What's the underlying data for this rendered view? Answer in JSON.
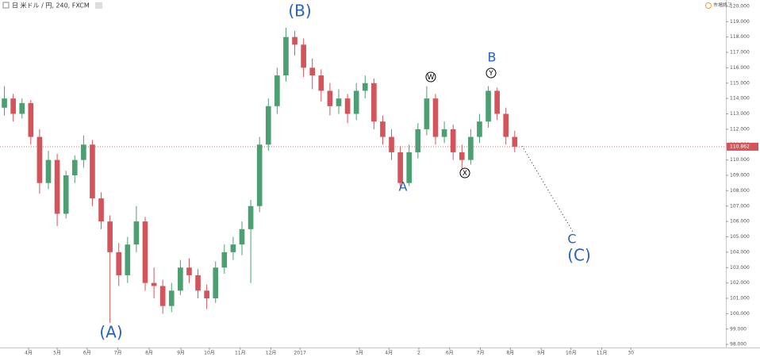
{
  "header": {
    "symbol": "日 米ドル / 円, 240, FXCM",
    "status": "市場終了"
  },
  "chart_data": {
    "type": "candlestick",
    "up_color": "#4c9f70",
    "down_color": "#d3555b",
    "xlim": [
      -0.5,
      82
    ],
    "xticks": [
      {
        "value": 2.75,
        "label": "4月"
      },
      {
        "value": 6.0,
        "label": "5月"
      },
      {
        "value": 9.4,
        "label": "6月"
      },
      {
        "value": 12.9,
        "label": "7月"
      },
      {
        "value": 16.45,
        "label": "8月"
      },
      {
        "value": 20.06,
        "label": "9月"
      },
      {
        "value": 23.3,
        "label": "10月"
      },
      {
        "value": 26.8,
        "label": "11月"
      },
      {
        "value": 30.3,
        "label": "12月"
      },
      {
        "value": 33.6,
        "label": "2017"
      },
      {
        "value": 40.35,
        "label": "3月"
      },
      {
        "value": 43.7,
        "label": "4月"
      },
      {
        "value": 47.1,
        "label": "2"
      },
      {
        "value": 50.6,
        "label": "6月"
      },
      {
        "value": 54.1,
        "label": "7月"
      },
      {
        "value": 57.5,
        "label": "8月"
      },
      {
        "value": 61.0,
        "label": "9月"
      },
      {
        "value": 64.4,
        "label": "10月"
      },
      {
        "value": 67.9,
        "label": "11月"
      },
      {
        "value": 71.2,
        "label": "30"
      }
    ],
    "ylim": [
      97.8,
      120.2
    ],
    "yticks": [
      {
        "value": 98,
        "label": "98.000"
      },
      {
        "value": 99,
        "label": "99.000"
      },
      {
        "value": 100,
        "label": "100.000"
      },
      {
        "value": 101,
        "label": "101.000"
      },
      {
        "value": 102,
        "label": "102.000"
      },
      {
        "value": 103,
        "label": "103.000"
      },
      {
        "value": 104,
        "label": "104.000"
      },
      {
        "value": 105,
        "label": "105.000"
      },
      {
        "value": 106,
        "label": "106.000"
      },
      {
        "value": 107,
        "label": "107.000"
      },
      {
        "value": 108,
        "label": "108.000"
      },
      {
        "value": 109,
        "label": "109.000"
      },
      {
        "value": 110,
        "label": "110.000"
      },
      {
        "value": 111,
        "label": "111.000"
      },
      {
        "value": 112,
        "label": "112.000"
      },
      {
        "value": 113,
        "label": "113.000"
      },
      {
        "value": 114,
        "label": "114.000"
      },
      {
        "value": 115,
        "label": "115.000"
      },
      {
        "value": 116,
        "label": "116.000"
      },
      {
        "value": 117,
        "label": "117.000"
      },
      {
        "value": 118,
        "label": "118.000"
      },
      {
        "value": 119,
        "label": "119.000"
      },
      {
        "value": 120,
        "label": "120.000"
      }
    ],
    "last_price": {
      "value": 110.862,
      "label": "110.862"
    },
    "series": [
      {
        "open": [
          113.4,
          114.0,
          113.0,
          113.7,
          111.5,
          108.5,
          110.0,
          106.5,
          109.0,
          110.0,
          111.0,
          107.5,
          106.0,
          104.0,
          102.5,
          104.5,
          106.0,
          102.0,
          101.8,
          100.5,
          101.5,
          103.0,
          102.5,
          101.5,
          101.0,
          103.0,
          104.0,
          104.5,
          105.5,
          107.0,
          111.0,
          113.5,
          115.5,
          118.0,
          117.5,
          116.0,
          115.5,
          114.5,
          113.5,
          114.0,
          113.0,
          114.5,
          115.0,
          112.5,
          111.5,
          110.5,
          108.5,
          110.5,
          112.0,
          114.0,
          111.5,
          112.0,
          110.5,
          110.0,
          111.5,
          112.5,
          114.5,
          113.0,
          111.5
        ],
        "high": [
          114.8,
          114.3,
          114.0,
          113.9,
          112.0,
          110.6,
          110.4,
          109.3,
          110.3,
          111.6,
          111.3,
          107.9,
          106.4,
          104.6,
          105.0,
          107.0,
          106.3,
          103.0,
          102.2,
          102.0,
          103.5,
          103.6,
          102.9,
          101.9,
          103.4,
          104.5,
          105.0,
          106.0,
          107.4,
          111.5,
          114.0,
          116.0,
          118.6,
          118.4,
          117.9,
          116.6,
          115.9,
          115.0,
          114.6,
          114.3,
          115.0,
          115.5,
          115.3,
          112.9,
          112.0,
          110.9,
          111.0,
          112.4,
          114.8,
          114.3,
          112.5,
          112.3,
          111.0,
          112.0,
          113.0,
          114.8,
          114.7,
          113.4,
          111.9
        ],
        "low": [
          112.9,
          112.5,
          112.7,
          111.0,
          107.8,
          108.1,
          105.7,
          106.2,
          108.5,
          109.5,
          107.0,
          105.5,
          99.4,
          101.8,
          102.0,
          104.0,
          101.5,
          101.0,
          100.0,
          100.1,
          101.2,
          102.0,
          101.0,
          100.3,
          100.7,
          102.6,
          103.5,
          103.8,
          102.0,
          106.6,
          110.6,
          113.0,
          115.1,
          116.8,
          115.4,
          114.6,
          113.8,
          112.9,
          113.0,
          112.4,
          112.6,
          114.0,
          112.0,
          111.0,
          110.0,
          108.2,
          108.3,
          110.1,
          111.6,
          111.0,
          111.1,
          110.0,
          109.0,
          109.7,
          111.1,
          112.1,
          112.6,
          111.0,
          110.5
        ],
        "close": [
          114.0,
          113.0,
          113.7,
          111.5,
          108.5,
          110.0,
          106.5,
          109.0,
          110.0,
          111.0,
          107.5,
          106.0,
          104.0,
          102.5,
          104.5,
          106.0,
          102.0,
          101.8,
          100.5,
          101.5,
          103.0,
          102.5,
          101.5,
          101.0,
          103.0,
          104.0,
          104.5,
          105.5,
          107.0,
          111.0,
          113.5,
          115.5,
          118.0,
          117.5,
          116.0,
          115.5,
          114.5,
          113.5,
          114.0,
          113.0,
          114.5,
          115.0,
          112.5,
          111.5,
          110.5,
          108.5,
          110.5,
          112.0,
          114.0,
          111.5,
          112.0,
          110.5,
          110.0,
          111.5,
          112.5,
          114.5,
          113.0,
          111.5,
          110.862
        ]
      }
    ],
    "annotations": [
      "(B)",
      "(A)",
      "A",
      "B",
      "C",
      "(C)",
      "W",
      "X",
      "Y"
    ]
  }
}
